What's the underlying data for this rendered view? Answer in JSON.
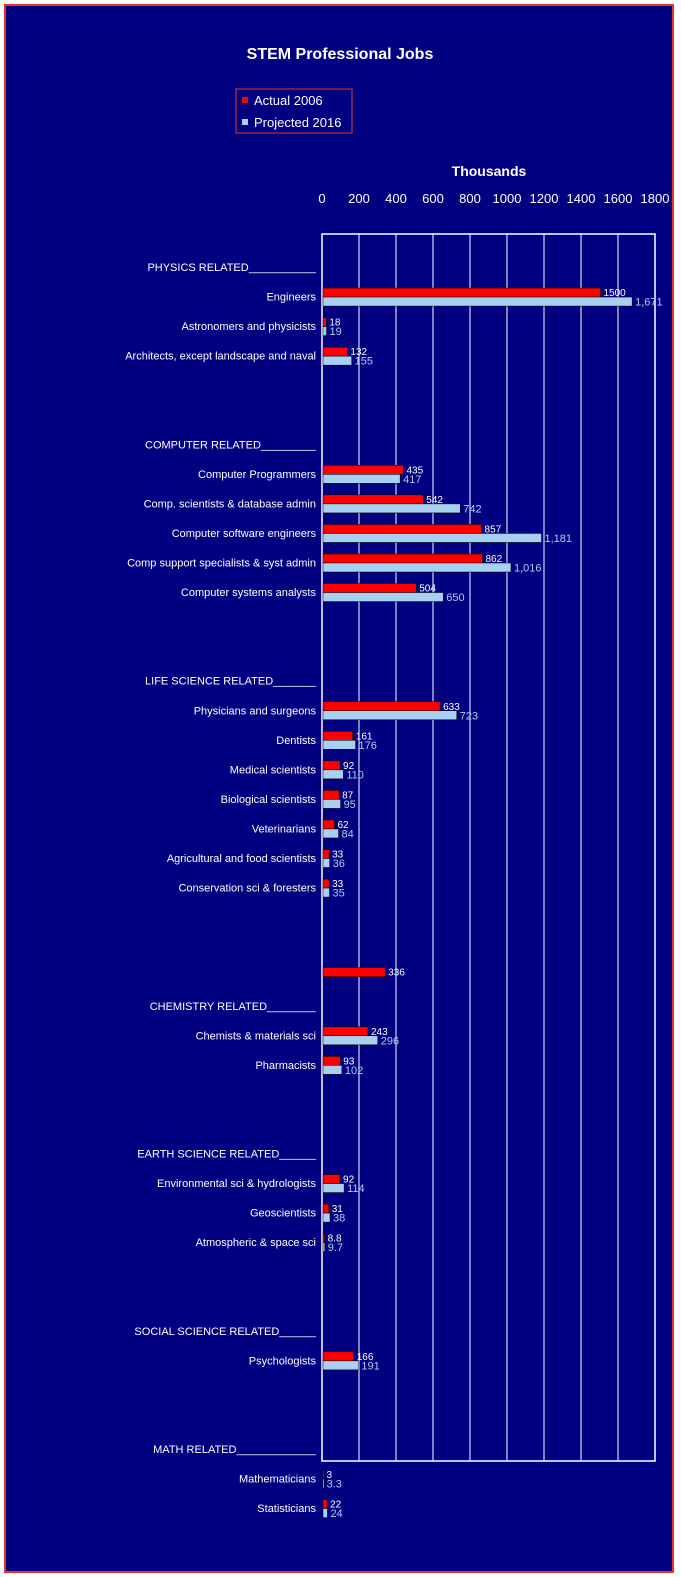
{
  "colors": {
    "background": "#000080",
    "frame": "#e8342a",
    "actual": "#ff0000",
    "projected": "#a8d0f0",
    "text": "#ffffff"
  },
  "chart_data": {
    "type": "bar",
    "orientation": "horizontal",
    "title": "STEM Professional Jobs",
    "xlabel": "Thousands",
    "xlim": [
      0,
      1800
    ],
    "x_ticks": [
      "0",
      "200",
      "400",
      "600",
      "800",
      "1000",
      "1200",
      "1400",
      "1600",
      "1800"
    ],
    "grid": true,
    "legend_position": "top-center",
    "series": [
      {
        "name": "Actual 2006",
        "color": "#ff0000"
      },
      {
        "name": "Projected 2016",
        "color": "#a8d0f0"
      }
    ],
    "categories": [
      {
        "label": "PHYSICS RELATED___________",
        "header": true
      },
      {
        "label": "Engineers",
        "actual": 1500,
        "actual_label": "1500",
        "projected": 1671,
        "projected_label": "1,671"
      },
      {
        "label": "Astronomers and physicists",
        "actual": 18,
        "actual_label": "18",
        "projected": 19,
        "projected_label": "19"
      },
      {
        "label": "Architects, except landscape and naval",
        "actual": 132,
        "actual_label": "132",
        "projected": 155,
        "projected_label": "155"
      },
      {
        "label": "",
        "spacer": true
      },
      {
        "label": "",
        "spacer": true
      },
      {
        "label": "COMPUTER RELATED_________",
        "header": true
      },
      {
        "label": "Computer Programmers",
        "actual": 435,
        "actual_label": "435",
        "projected": 417,
        "projected_label": "417"
      },
      {
        "label": "Comp. scientists & database admin",
        "actual": 542,
        "actual_label": "542",
        "projected": 742,
        "projected_label": "742"
      },
      {
        "label": "Computer software engineers",
        "actual": 857,
        "actual_label": "857",
        "projected": 1181,
        "projected_label": "1,181"
      },
      {
        "label": "Comp support specialists & syst admin",
        "actual": 862,
        "actual_label": "862",
        "projected": 1016,
        "projected_label": "1,016"
      },
      {
        "label": "Computer systems analysts",
        "actual": 504,
        "actual_label": "504",
        "projected": 650,
        "projected_label": "650"
      },
      {
        "label": "",
        "spacer": true
      },
      {
        "label": "",
        "spacer": true
      },
      {
        "label": "LIFE SCIENCE RELATED_______",
        "header": true
      },
      {
        "label": "Physicians and surgeons",
        "actual": 633,
        "actual_label": "633",
        "projected": 723,
        "projected_label": "723"
      },
      {
        "label": "Dentists",
        "actual": 161,
        "actual_label": "161",
        "projected": 176,
        "projected_label": "176"
      },
      {
        "label": "Medical scientists",
        "actual": 92,
        "actual_label": "92",
        "projected": 110,
        "projected_label": "110"
      },
      {
        "label": "Biological scientists",
        "actual": 87,
        "actual_label": "87",
        "projected": 95,
        "projected_label": "95"
      },
      {
        "label": "Veterinarians",
        "actual": 62,
        "actual_label": "62",
        "projected": 84,
        "projected_label": "84"
      },
      {
        "label": "Agricultural and food scientists",
        "actual": 33,
        "actual_label": "33",
        "projected": 36,
        "projected_label": "36"
      },
      {
        "label": "Conservation sci & foresters",
        "actual": 33,
        "actual_label": "33",
        "projected": 35,
        "projected_label": "35"
      },
      {
        "label": "",
        "spacer": true
      },
      {
        "label": "",
        "spacer": true
      },
      {
        "label": "",
        "actual": 336,
        "actual_label": "336"
      },
      {
        "label": "CHEMISTRY RELATED________",
        "header": true
      },
      {
        "label": "Chemists & materials sci",
        "actual": 243,
        "actual_label": "243",
        "projected": 296,
        "projected_label": "296"
      },
      {
        "label": "Pharmacists",
        "actual": 93,
        "actual_label": "93",
        "projected": 102,
        "projected_label": "102"
      },
      {
        "label": "",
        "spacer": true
      },
      {
        "label": "",
        "spacer": true
      },
      {
        "label": "EARTH SCIENCE RELATED______",
        "header": true
      },
      {
        "label": "Environmental sci & hydrologists",
        "actual": 92,
        "actual_label": "92",
        "projected": 114,
        "projected_label": "114"
      },
      {
        "label": "Geoscientists",
        "actual": 31,
        "actual_label": "31",
        "projected": 38,
        "projected_label": "38"
      },
      {
        "label": "Atmospheric & space sci",
        "actual": 8.8,
        "actual_label": "8.8",
        "projected": 9.7,
        "projected_label": "9.7"
      },
      {
        "label": "",
        "spacer": true
      },
      {
        "label": "",
        "spacer": true
      },
      {
        "label": "SOCIAL SCIENCE RELATED______",
        "header": true
      },
      {
        "label": "Psychologists",
        "actual": 166,
        "actual_label": "166",
        "projected": 191,
        "projected_label": "191"
      },
      {
        "label": "",
        "spacer": true
      },
      {
        "label": "",
        "spacer": true
      },
      {
        "label": "MATH RELATED_____________",
        "header": true
      },
      {
        "label": "Mathematicians",
        "actual": 3,
        "actual_label": "3",
        "projected": 3.3,
        "projected_label": "3.3"
      },
      {
        "label": "Statisticians",
        "actual": 22,
        "actual_label": "22",
        "projected": 24,
        "projected_label": "24"
      }
    ]
  }
}
